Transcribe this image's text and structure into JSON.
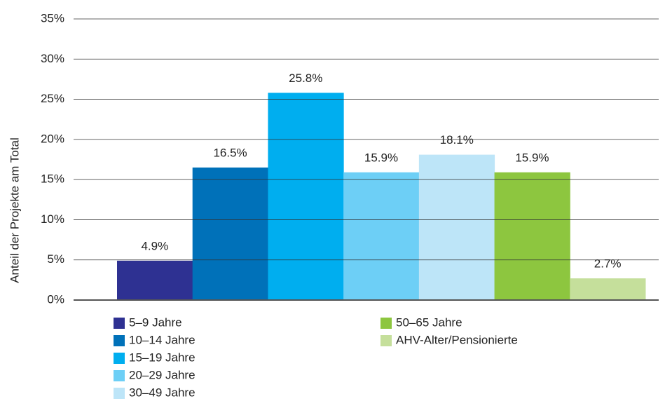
{
  "chart_data": {
    "type": "bar",
    "y_label": "Anteil der Projekte am Total",
    "categories": [
      "5–9 Jahre",
      "10–14 Jahre",
      "15–19 Jahre",
      "20–29 Jahre",
      "30–49 Jahre",
      "50–65 Jahre",
      "AHV-Alter/Pensionierte"
    ],
    "values": [
      4.9,
      16.5,
      25.8,
      15.9,
      18.1,
      15.9,
      2.7
    ],
    "value_labels": [
      "4.9%",
      "16.5%",
      "25.8%",
      "15.9%",
      "18.1%",
      "15.9%",
      "2.7%"
    ],
    "colors": [
      "#2e3192",
      "#0071b9",
      "#00aeef",
      "#6dcff6",
      "#bde5f8",
      "#8dc63f",
      "#c5df9b"
    ],
    "ylim": [
      0,
      35
    ],
    "yticks": [
      {
        "value": 0,
        "label": "0%"
      },
      {
        "value": 5,
        "label": "5%"
      },
      {
        "value": 10,
        "label": "10%"
      },
      {
        "value": 15,
        "label": "15%"
      },
      {
        "value": 20,
        "label": "20%"
      },
      {
        "value": 25,
        "label": "25%"
      },
      {
        "value": 30,
        "label": "30%"
      },
      {
        "value": 35,
        "label": "35%"
      }
    ],
    "grid": true
  }
}
